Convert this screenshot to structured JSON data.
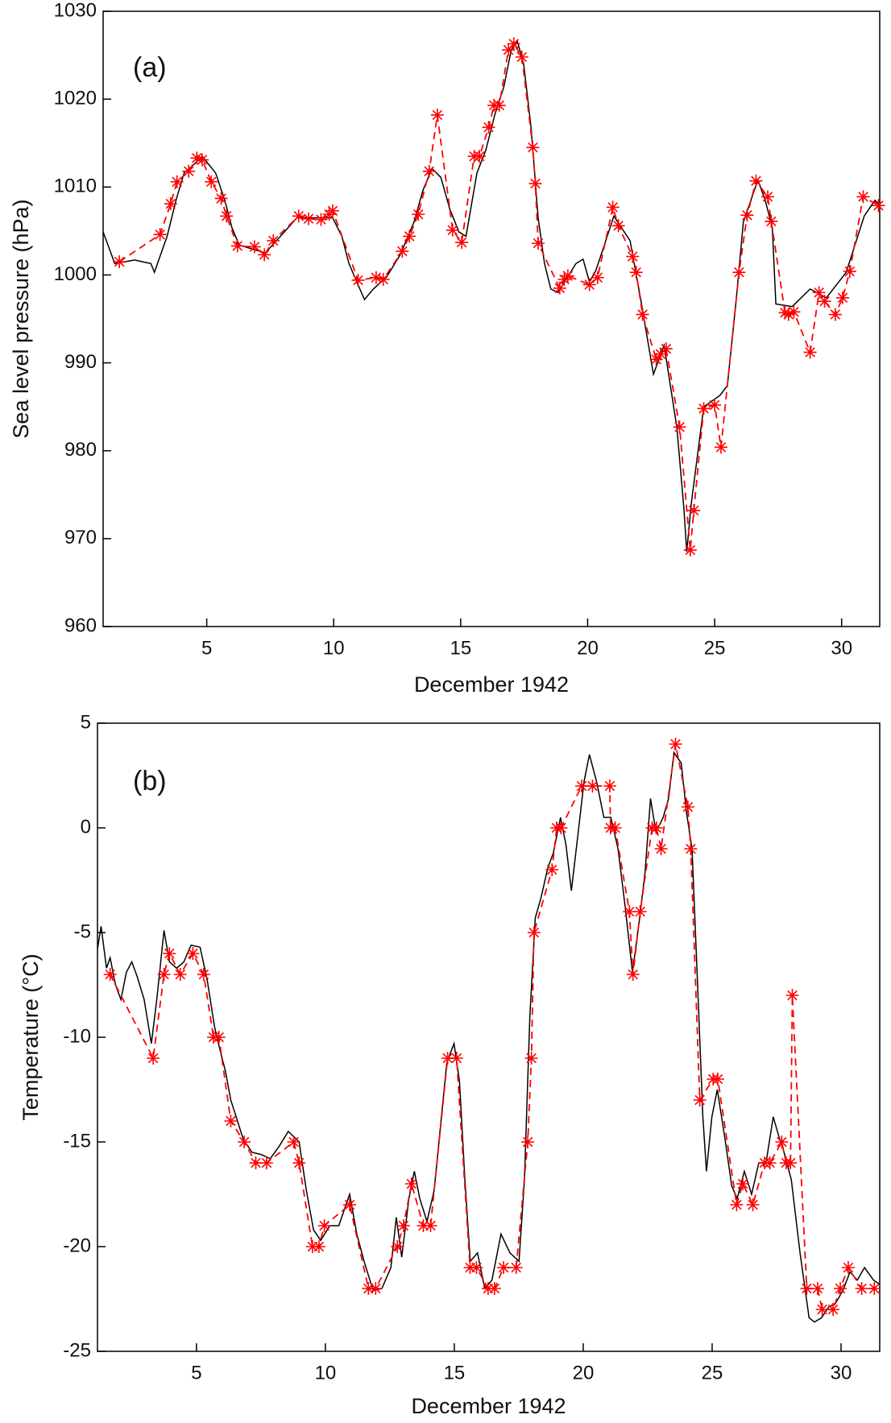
{
  "chart_data": [
    {
      "type": "line",
      "annotation": "(a)",
      "xlabel": "December 1942",
      "ylabel": "Sea level pressure (hPa)",
      "xlim": [
        0.92,
        31.5
      ],
      "ylim": [
        960,
        1030
      ],
      "xticks": [
        5,
        10,
        15,
        20,
        25,
        30
      ],
      "yticks": [
        960,
        970,
        980,
        990,
        1000,
        1010,
        1020,
        1030
      ],
      "series": [
        {
          "color": "#000000",
          "style": "solid",
          "x": [
            0.92,
            1.38,
            2.16,
            2.8,
            2.94,
            3.44,
            3.79,
            4.11,
            4.47,
            4.82,
            5.35,
            5.71,
            5.99,
            6.28,
            7.3,
            7.84,
            8.55,
            9.96,
            10.32,
            10.6,
            11.21,
            11.56,
            12.09,
            12.62,
            13.16,
            13.51,
            13.87,
            14.22,
            14.57,
            14.93,
            15.21,
            15.64,
            15.99,
            16.35,
            16.7,
            16.99,
            17.23,
            17.48,
            17.77,
            18.05,
            18.3,
            18.55,
            18.83,
            19.54,
            19.82,
            20.07,
            20.32,
            20.6,
            21.03,
            21.67,
            22.09,
            22.59,
            23.01,
            23.51,
            23.79,
            23.9,
            24.08,
            24.57,
            25.21,
            25.5,
            25.85,
            26.13,
            26.7,
            26.99,
            27.27,
            27.41,
            28.05,
            28.76,
            29.4,
            30.18,
            30.89,
            31.31,
            31.5
          ],
          "values": [
            1004.9,
            1001.3,
            1001.7,
            1001.3,
            1000.3,
            1004.4,
            1008.5,
            1011.6,
            1012.5,
            1013.5,
            1011.6,
            1008.5,
            1005.4,
            1003.4,
            1002.5,
            1004.2,
            1006.5,
            1006.5,
            1004.4,
            1001.3,
            997.2,
            998.4,
            999.8,
            1002.3,
            1006.0,
            1009.6,
            1012.1,
            1011.1,
            1007.5,
            1004.9,
            1004.4,
            1011.6,
            1014.2,
            1018.3,
            1021.4,
            1025.6,
            1026.6,
            1024.0,
            1016.8,
            1006.5,
            1001.3,
            998.4,
            998.0,
            1001.3,
            1001.8,
            999.2,
            1000.5,
            1002.9,
            1006.7,
            1003.9,
            997.2,
            988.7,
            992.0,
            982.7,
            973.4,
            968.5,
            974.0,
            985.0,
            986.3,
            987.4,
            997.2,
            1006.0,
            1010.8,
            1008.5,
            1005.4,
            996.7,
            996.4,
            998.4,
            997.4,
            1000.3,
            1006.7,
            1008.5,
            1008.0
          ]
        },
        {
          "color": "#ff0000",
          "style": "dashed",
          "marker": "asterisk",
          "x": [
            1.56,
            3.16,
            3.58,
            3.83,
            4.29,
            4.61,
            4.82,
            5.18,
            5.57,
            5.78,
            6.21,
            6.88,
            7.27,
            7.62,
            8.62,
            9.01,
            9.5,
            9.82,
            9.96,
            10.96,
            11.67,
            11.95,
            12.7,
            12.98,
            13.33,
            13.76,
            14.08,
            14.68,
            15.04,
            15.53,
            15.74,
            16.1,
            16.31,
            16.52,
            16.88,
            17.09,
            17.41,
            17.84,
            17.94,
            18.05,
            18.9,
            19.08,
            19.22,
            20.07,
            20.39,
            20.99,
            21.21,
            21.77,
            21.91,
            22.16,
            22.7,
            22.87,
            23.09,
            23.62,
            24.04,
            24.18,
            24.57,
            25.0,
            25.25,
            25.96,
            26.28,
            26.63,
            27.09,
            27.23,
            27.77,
            27.91,
            28.12,
            28.76,
            29.11,
            29.33,
            29.75,
            30.04,
            30.32,
            30.85,
            31.45
          ],
          "values": [
            1001.5,
            1004.6,
            1008.1,
            1010.6,
            1011.8,
            1013.3,
            1013.1,
            1010.6,
            1008.7,
            1006.7,
            1003.3,
            1003.2,
            1002.3,
            1003.9,
            1006.7,
            1006.4,
            1006.3,
            1006.9,
            1007.3,
            999.4,
            999.7,
            999.5,
            1002.7,
            1004.4,
            1006.9,
            1011.8,
            1018.2,
            1005.1,
            1003.7,
            1013.5,
            1013.5,
            1016.8,
            1019.3,
            1019.3,
            1025.6,
            1026.3,
            1024.8,
            1014.5,
            1010.4,
            1003.6,
            998.5,
            999.5,
            999.9,
            998.9,
            999.7,
            1007.7,
            1005.6,
            1002.1,
            1000.3,
            995.5,
            990.4,
            991.0,
            991.6,
            982.7,
            968.7,
            973.2,
            984.8,
            985.2,
            980.4,
            1000.3,
            1006.8,
            1010.7,
            1008.9,
            1006.1,
            995.7,
            995.5,
            995.8,
            991.2,
            998.0,
            997.0,
            995.5,
            997.4,
            1000.4,
            1008.9,
            1007.9
          ]
        }
      ]
    },
    {
      "type": "line",
      "annotation": "(b)",
      "xlabel": "December 1942",
      "ylabel": "Temperature (°C)",
      "xlim": [
        1.16,
        31.5
      ],
      "ylim": [
        -25,
        5
      ],
      "xticks": [
        5,
        10,
        15,
        20,
        25,
        30
      ],
      "yticks": [
        -25,
        -20,
        -15,
        -10,
        -5,
        0,
        5
      ],
      "series": [
        {
          "color": "#000000",
          "style": "solid",
          "x": [
            1.16,
            1.3,
            1.51,
            1.65,
            1.86,
            2.07,
            2.28,
            2.49,
            2.7,
            2.97,
            3.25,
            3.46,
            3.74,
            3.95,
            4.23,
            4.51,
            4.79,
            5.14,
            5.42,
            5.7,
            5.91,
            6.12,
            6.33,
            6.54,
            6.82,
            7.16,
            7.51,
            7.86,
            8.21,
            8.56,
            8.98,
            9.26,
            9.54,
            9.82,
            10.17,
            10.52,
            10.94,
            11.22,
            11.5,
            11.85,
            12.19,
            12.54,
            12.75,
            12.96,
            13.24,
            13.45,
            13.66,
            13.94,
            14.22,
            14.5,
            14.71,
            14.99,
            15.2,
            15.41,
            15.62,
            15.9,
            16.18,
            16.46,
            16.81,
            17.16,
            17.51,
            17.72,
            17.93,
            18.14,
            18.35,
            18.63,
            18.84,
            19.12,
            19.33,
            19.54,
            19.75,
            20.03,
            20.24,
            20.52,
            20.8,
            21.07,
            21.35,
            21.63,
            21.91,
            22.19,
            22.4,
            22.61,
            22.82,
            23.1,
            23.31,
            23.52,
            23.8,
            24.01,
            24.22,
            24.43,
            24.64,
            24.78,
            24.99,
            25.2,
            25.48,
            25.76,
            25.97,
            26.25,
            26.53,
            26.81,
            27.09,
            27.37,
            27.58,
            27.79,
            28.07,
            28.41,
            28.76,
            28.97,
            29.24,
            29.51,
            29.79,
            30.07,
            30.35,
            30.63,
            30.91,
            31.26,
            31.5
          ],
          "values": [
            -5.8,
            -4.7,
            -6.7,
            -6.2,
            -7.5,
            -8.2,
            -6.9,
            -6.4,
            -7.1,
            -8.2,
            -10.3,
            -8.2,
            -4.9,
            -6.4,
            -6.7,
            -6.4,
            -5.6,
            -5.7,
            -7.3,
            -9.5,
            -10.6,
            -11.6,
            -13.0,
            -13.8,
            -14.9,
            -15.5,
            -15.6,
            -15.8,
            -15.2,
            -14.5,
            -15.0,
            -17.3,
            -19.2,
            -19.7,
            -19.0,
            -19.0,
            -17.5,
            -19.4,
            -20.7,
            -22.1,
            -22.0,
            -21.0,
            -18.6,
            -20.5,
            -17.7,
            -16.4,
            -17.7,
            -18.8,
            -17.3,
            -13.8,
            -11.2,
            -10.3,
            -12.1,
            -16.8,
            -20.7,
            -20.3,
            -22.0,
            -21.6,
            -19.4,
            -20.3,
            -20.7,
            -16.8,
            -9.0,
            -4.3,
            -3.4,
            -1.9,
            -1.2,
            0.5,
            -0.8,
            -3.0,
            -0.8,
            2.2,
            3.5,
            2.2,
            0.5,
            0.5,
            -1.0,
            -3.8,
            -6.9,
            -4.3,
            -2.1,
            1.4,
            -0.2,
            0.5,
            1.4,
            3.6,
            3.1,
            0.7,
            -1.0,
            -7.3,
            -13.8,
            -16.4,
            -13.8,
            -12.5,
            -14.7,
            -17.1,
            -17.7,
            -16.4,
            -17.5,
            -16.0,
            -16.0,
            -13.8,
            -14.7,
            -15.5,
            -16.8,
            -20.3,
            -23.4,
            -23.6,
            -23.4,
            -22.9,
            -22.7,
            -22.1,
            -21.2,
            -21.6,
            -21.0,
            -21.6,
            -21.8
          ]
        },
        {
          "color": "#ff0000",
          "style": "dashed",
          "marker": "asterisk",
          "x": [
            1.65,
            3.32,
            3.74,
            3.95,
            4.37,
            4.86,
            5.28,
            5.66,
            5.87,
            6.33,
            6.85,
            7.3,
            7.72,
            8.77,
            8.98,
            9.5,
            9.75,
            9.96,
            10.94,
            11.67,
            11.95,
            12.79,
            13.03,
            13.34,
            13.8,
            14.08,
            14.74,
            15.09,
            15.61,
            15.86,
            16.31,
            16.56,
            16.91,
            17.4,
            17.85,
            17.99,
            18.09,
            18.79,
            18.97,
            19.14,
            19.94,
            20.36,
            21.03,
            21.06,
            21.24,
            21.79,
            21.93,
            22.21,
            22.67,
            22.84,
            23.02,
            23.58,
            24.06,
            24.17,
            24.52,
            25.04,
            25.22,
            25.95,
            26.19,
            26.58,
            27.03,
            27.24,
            27.7,
            27.87,
            28.04,
            28.11,
            28.67,
            29.09,
            29.27,
            29.69,
            29.97,
            30.28,
            30.8,
            31.29
          ],
          "values": [
            -7,
            -11,
            -7,
            -6,
            -7,
            -6,
            -7,
            -10,
            -10,
            -14,
            -15,
            -16,
            -16,
            -15,
            -16,
            -20,
            -20,
            -19,
            -18,
            -22,
            -22,
            -20,
            -19,
            -17,
            -19,
            -19,
            -11,
            -11,
            -21,
            -21,
            -22,
            -22,
            -21,
            -21,
            -15,
            -11,
            -5,
            -2,
            0,
            0,
            2,
            2,
            2,
            0,
            0,
            -4,
            -7,
            -4,
            0,
            0,
            -1,
            4,
            1,
            -1,
            -13,
            -12,
            -12,
            -18,
            -17,
            -18,
            -16,
            -16,
            -15,
            -16,
            -16,
            -8,
            -22,
            -22,
            -23,
            -23,
            -22,
            -21,
            -22,
            -22
          ]
        }
      ]
    }
  ]
}
